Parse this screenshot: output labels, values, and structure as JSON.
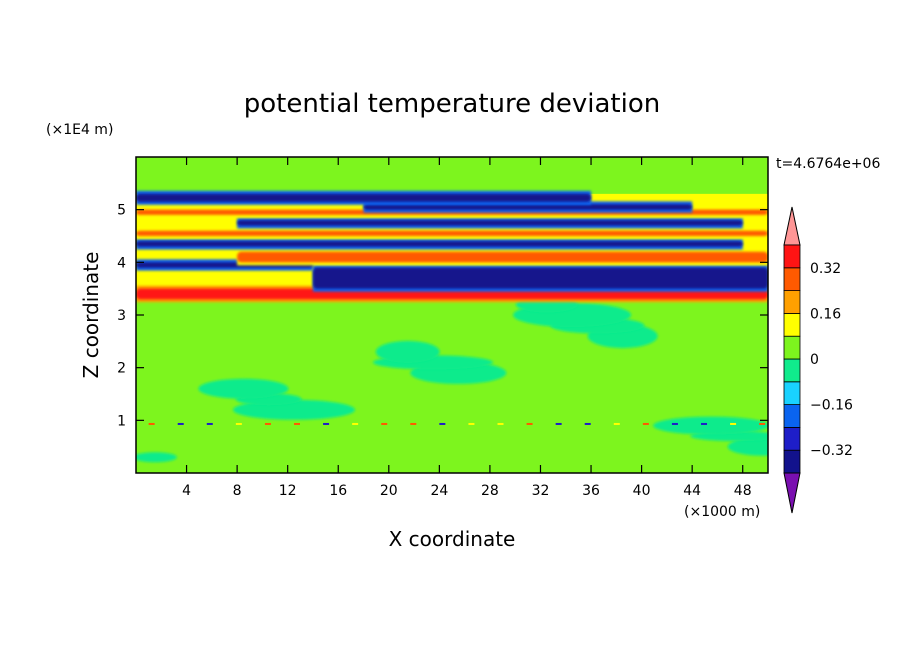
{
  "chart_data": {
    "type": "heatmap",
    "title": "potential temperature deviation",
    "xlabel": "X coordinate",
    "ylabel": "Z coordinate",
    "x_unit": "(×1000 m)",
    "y_unit": "(×1E4 m)",
    "time_label": "t=4.6764e+06",
    "xlim": [
      0,
      50
    ],
    "ylim": [
      0,
      6
    ],
    "x_ticks": [
      4,
      8,
      12,
      16,
      20,
      24,
      28,
      32,
      36,
      40,
      44,
      48
    ],
    "y_ticks": [
      1,
      2,
      3,
      4,
      5
    ],
    "colorbar": {
      "levels": [
        -0.4,
        -0.32,
        -0.24,
        -0.16,
        -0.08,
        0,
        0.08,
        0.16,
        0.24,
        0.32,
        0.4
      ],
      "labels": [
        "0.32",
        "0.16",
        "0",
        "−0.16",
        "−0.32"
      ],
      "label_values": [
        0.32,
        0.16,
        0,
        -0.16,
        -0.32
      ],
      "colors": [
        "#7a0fb0",
        "#12128c",
        "#1e1ec8",
        "#0a64f0",
        "#19d2ff",
        "#10eb8c",
        "#7df51e",
        "#ffff00",
        "#ffa000",
        "#ff5a00",
        "#ff1414",
        "#ff9696"
      ]
    },
    "grid": false,
    "legend": "colorbar-right",
    "bands": [
      {
        "z_bottom": 0.0,
        "z_top": 3.3,
        "level": "near 0 (green/light green), with small ±0.1 patches near z=1"
      },
      {
        "z_bottom": 3.3,
        "z_top": 3.5,
        "level": 0.36,
        "x_extent": [
          0,
          50
        ]
      },
      {
        "z_bottom": 3.5,
        "z_top": 3.9,
        "level": -0.36,
        "x_extent": [
          14,
          50
        ]
      },
      {
        "z_bottom": 3.9,
        "z_top": 4.0,
        "level": -0.36,
        "x_extent": [
          0,
          14
        ]
      },
      {
        "z_bottom": 4.0,
        "z_top": 4.2,
        "level": 0.28,
        "x_extent": [
          8,
          50
        ]
      },
      {
        "z_bottom": 4.3,
        "z_top": 4.4,
        "level": -0.34,
        "x_extent": [
          0,
          48
        ]
      },
      {
        "z_bottom": 4.5,
        "z_top": 4.6,
        "level": 0.3,
        "x_extent": [
          0,
          50
        ]
      },
      {
        "z_bottom": 4.7,
        "z_top": 4.8,
        "level": -0.34,
        "x_extent": [
          8,
          48
        ]
      },
      {
        "z_bottom": 4.9,
        "z_top": 5.0,
        "level": 0.3,
        "x_extent": [
          0,
          50
        ]
      },
      {
        "z_bottom": 5.0,
        "z_top": 5.1,
        "level": -0.34,
        "x_extent": [
          18,
          44
        ]
      },
      {
        "z_bottom": 5.15,
        "z_top": 5.3,
        "level": -0.34,
        "x_extent": [
          0,
          36
        ]
      },
      {
        "z_bottom": 5.3,
        "z_top": 6.0,
        "level": "near 0 (green)"
      }
    ]
  }
}
